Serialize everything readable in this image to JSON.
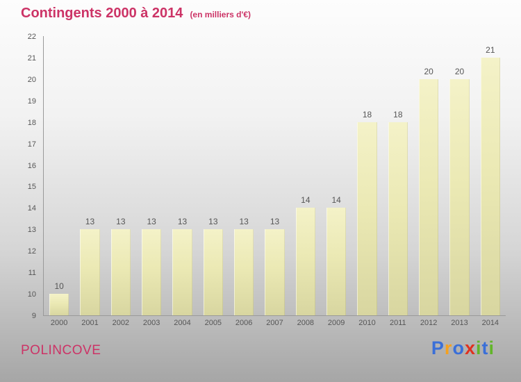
{
  "header": {
    "title": "Contingents 2000 à 2014",
    "subtitle": "(en milliers d'€)"
  },
  "footer": {
    "place": "POLINCOVE",
    "logo": {
      "text": "Proxiti",
      "letters": [
        {
          "ch": "P",
          "color": "#3a6fd8"
        },
        {
          "ch": "r",
          "color": "#f5a11f"
        },
        {
          "ch": "o",
          "color": "#3a6fd8"
        },
        {
          "ch": "x",
          "color": "#e0311f"
        },
        {
          "ch": "i",
          "color": "#62b52a"
        },
        {
          "ch": "t",
          "color": "#3a6fd8"
        },
        {
          "ch": "i",
          "color": "#62b52a"
        }
      ]
    }
  },
  "colors": {
    "title": "#cc3366",
    "axis": "#999999",
    "tick_label": "#555555",
    "bar": "#ebe9b4"
  },
  "chart_data": {
    "type": "bar",
    "title": "Contingents 2000 à 2014",
    "subtitle": "(en milliers d'€)",
    "categories": [
      "2000",
      "2001",
      "2002",
      "2003",
      "2004",
      "2005",
      "2006",
      "2007",
      "2008",
      "2009",
      "2010",
      "2011",
      "2012",
      "2013",
      "2014"
    ],
    "values": [
      10,
      13,
      13,
      13,
      13,
      13,
      13,
      13,
      14,
      14,
      18,
      18,
      20,
      20,
      21
    ],
    "xlabel": "",
    "ylabel": "",
    "ylim": [
      9,
      22
    ],
    "yticks": [
      9,
      10,
      11,
      12,
      13,
      14,
      15,
      16,
      17,
      18,
      19,
      20,
      21,
      22
    ],
    "grid": false,
    "legend": false,
    "value_labels": true
  }
}
